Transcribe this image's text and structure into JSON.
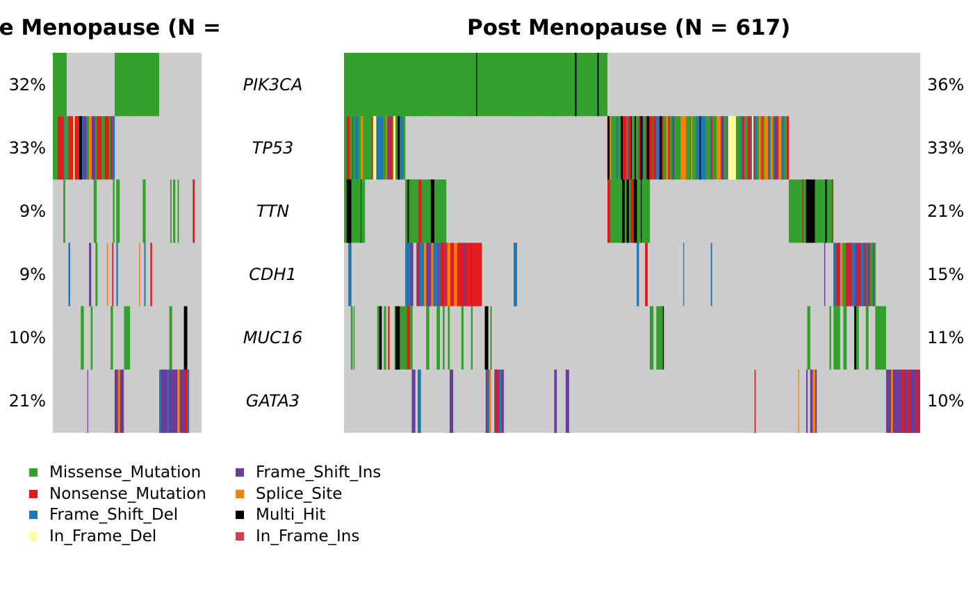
{
  "chart_data": {
    "type": "oncoplot",
    "panels": [
      {
        "title": "Pre Menopause (N =",
        "key": "pre"
      },
      {
        "title": "Post Menopause (N = 617)",
        "key": "post"
      }
    ],
    "genes": [
      "PIK3CA",
      "TP53",
      "TTN",
      "CDH1",
      "MUC16",
      "GATA3"
    ],
    "frequencies": {
      "pre": [
        "32%",
        "33%",
        "9%",
        "9%",
        "10%",
        "21%"
      ],
      "post": [
        "36%",
        "33%",
        "21%",
        "15%",
        "11%",
        "10%"
      ]
    },
    "legend": [
      {
        "label": "Missense_Mutation",
        "color": "#33a02c"
      },
      {
        "label": "Nonsense_Mutation",
        "color": "#e31a1c"
      },
      {
        "label": "Frame_Shift_Del",
        "color": "#1f78b4"
      },
      {
        "label": "In_Frame_Del",
        "color": "#ffff99"
      },
      {
        "label": "Frame_Shift_Ins",
        "color": "#6a3d9a"
      },
      {
        "label": "Splice_Site",
        "color": "#ff7f00"
      },
      {
        "label": "Multi_Hit",
        "color": "#000000"
      },
      {
        "label": "In_Frame_Ins",
        "color": "#d53e4f"
      }
    ],
    "background_color": "#cccccc"
  }
}
